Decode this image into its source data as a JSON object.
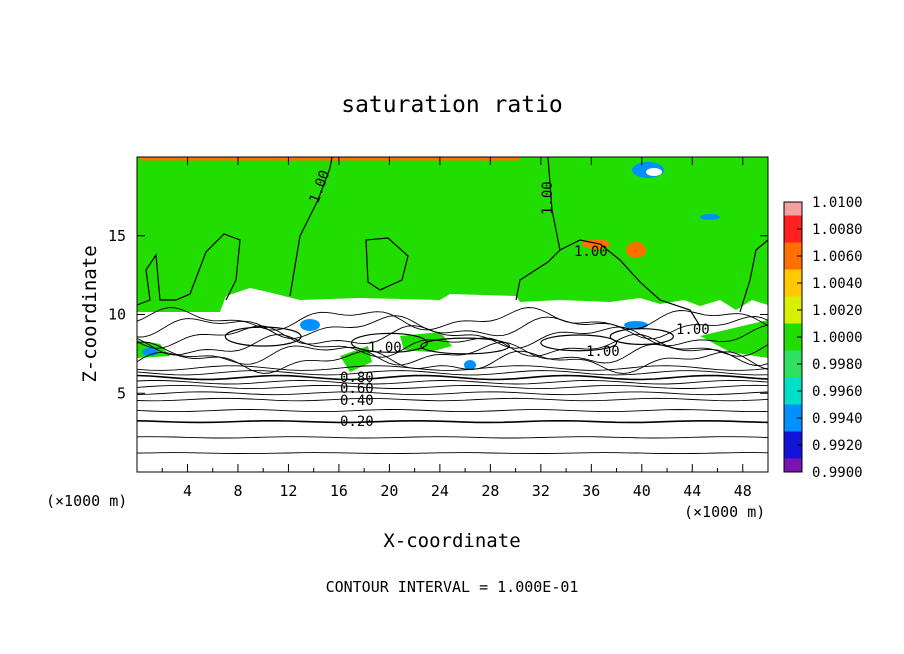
{
  "chart_data": {
    "type": "heatmap",
    "title": "saturation ratio",
    "xlabel": "X-coordinate",
    "ylabel": "Z-coordinate",
    "x_unit_left": "(×1000 m)",
    "x_unit_right": "(×1000 m)",
    "xlim": [
      0,
      50
    ],
    "ylim": [
      0,
      20
    ],
    "x_ticks": [
      4,
      8,
      12,
      16,
      20,
      24,
      28,
      32,
      36,
      40,
      44,
      48
    ],
    "x_tick_labels": [
      "4",
      "8",
      "12",
      "16",
      "20",
      "24",
      "28",
      "32",
      "36",
      "40",
      "44",
      "48"
    ],
    "y_ticks": [
      5,
      10,
      15
    ],
    "y_tick_labels": [
      "5",
      "10",
      "15"
    ],
    "footer": "CONTOUR INTERVAL = 1.000E-01",
    "colorbar": {
      "levels": [
        "1.0100",
        "1.0080",
        "1.0060",
        "1.0040",
        "1.0020",
        "1.0000",
        "0.9980",
        "0.9960",
        "0.9940",
        "0.9920",
        "0.9900"
      ],
      "colors": [
        "#f4a0a0",
        "#ff2020",
        "#ff7000",
        "#ffc800",
        "#d8f000",
        "#22dd00",
        "#30e060",
        "#00e0c8",
        "#0090ff",
        "#1414d8",
        "#7a14b0"
      ]
    },
    "contours": [
      {
        "value": 0.2,
        "z": 3.2,
        "label": "0.20"
      },
      {
        "value": 0.4,
        "z": 4.6,
        "label": "0.40"
      },
      {
        "value": 0.6,
        "z": 5.4,
        "label": "0.60"
      },
      {
        "value": 0.8,
        "z": 6.0,
        "label": "0.80"
      },
      {
        "value": 1.0,
        "label": "1.00"
      }
    ],
    "field_colors": {
      "saturated": "#22dd00",
      "subsaturated": "#ffffff",
      "supersaturated": "#ff7000",
      "dry": "#0090ff"
    }
  }
}
